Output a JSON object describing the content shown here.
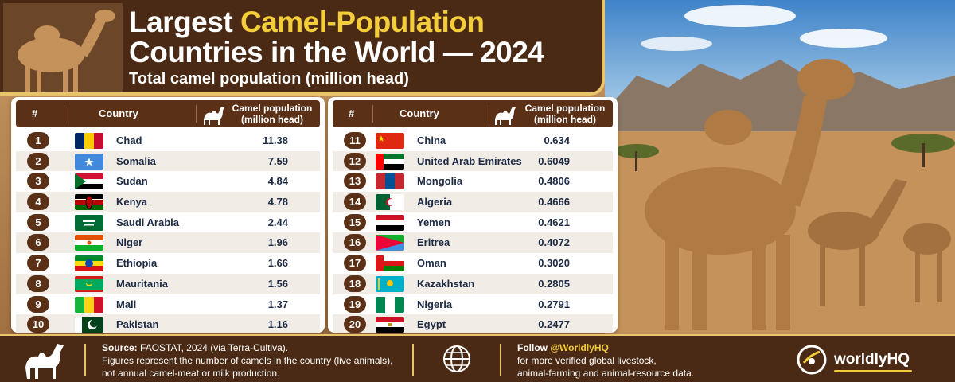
{
  "header": {
    "title_part1": "Largest ",
    "title_highlight": "Camel-Population",
    "title_line2": "Countries in the World — 2024",
    "subtitle": "Total camel population (million head)"
  },
  "table": {
    "col_number": "#",
    "col_country": "Country",
    "col_population_line1": "Camel population",
    "col_population_line2": "(million head)"
  },
  "rows_left": [
    {
      "rank": "1",
      "country": "Chad",
      "value": "11.38",
      "flag": "chad"
    },
    {
      "rank": "2",
      "country": "Somalia",
      "value": "7.59",
      "flag": "somalia"
    },
    {
      "rank": "3",
      "country": "Sudan",
      "value": "4.84",
      "flag": "sudan"
    },
    {
      "rank": "4",
      "country": "Kenya",
      "value": "4.78",
      "flag": "kenya"
    },
    {
      "rank": "5",
      "country": "Saudi Arabia",
      "value": "2.44",
      "flag": "saudi-arabia"
    },
    {
      "rank": "6",
      "country": "Niger",
      "value": "1.96",
      "flag": "niger"
    },
    {
      "rank": "7",
      "country": "Ethiopia",
      "value": "1.66",
      "flag": "ethiopia"
    },
    {
      "rank": "8",
      "country": "Mauritania",
      "value": "1.56",
      "flag": "mauritania"
    },
    {
      "rank": "9",
      "country": "Mali",
      "value": "1.37",
      "flag": "mali"
    },
    {
      "rank": "10",
      "country": "Pakistan",
      "value": "1.16",
      "flag": "pakistan"
    }
  ],
  "rows_right": [
    {
      "rank": "11",
      "country": "China",
      "value": "0.634",
      "flag": "china"
    },
    {
      "rank": "12",
      "country": "United Arab Emirates",
      "value": "0.6049",
      "flag": "uae"
    },
    {
      "rank": "13",
      "country": "Mongolia",
      "value": "0.4806",
      "flag": "mongolia"
    },
    {
      "rank": "14",
      "country": "Algeria",
      "value": "0.4666",
      "flag": "algeria"
    },
    {
      "rank": "15",
      "country": "Yemen",
      "value": "0.4621",
      "flag": "yemen"
    },
    {
      "rank": "16",
      "country": "Eritrea",
      "value": "0.4072",
      "flag": "eritrea"
    },
    {
      "rank": "17",
      "country": "Oman",
      "value": "0.3020",
      "flag": "oman"
    },
    {
      "rank": "18",
      "country": "Kazakhstan",
      "value": "0.2805",
      "flag": "kazakhstan"
    },
    {
      "rank": "19",
      "country": "Nigeria",
      "value": "0.2791",
      "flag": "nigeria"
    },
    {
      "rank": "20",
      "country": "Egypt",
      "value": "0.2477",
      "flag": "egypt"
    }
  ],
  "footer": {
    "source_label": "Source:",
    "source_text": "FAOSTAT, 2024 (via Terra-Cultiva).",
    "note_line1": "Figures represent the number of camels in the country (live animals),",
    "note_line2": "not annual camel-meat or milk production.",
    "follow_label": "Follow",
    "follow_handle": "@WorldlyHQ",
    "follow_line1": "for more verified global livestock,",
    "follow_line2": "animal-farming and animal-resource data.",
    "brand": "worldlyHQ"
  },
  "colors": {
    "header_bg": "#4a2a14",
    "accent_yellow": "#f3cd3a",
    "table_header": "#5a3117",
    "text_navy": "#1c2a44"
  },
  "icons": [
    "camel-icon",
    "globe-icon",
    "worldlyhq-logo-icon"
  ]
}
